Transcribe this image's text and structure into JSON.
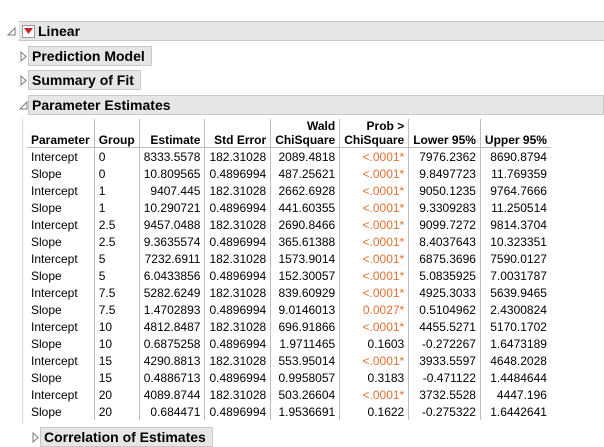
{
  "report": {
    "title": "Linear",
    "sections": [
      {
        "label": "Prediction Model",
        "expanded": false
      },
      {
        "label": "Summary of Fit",
        "expanded": false
      },
      {
        "label": "Parameter Estimates",
        "expanded": true
      },
      {
        "label": "Correlation of Estimates",
        "expanded": false
      }
    ]
  },
  "table": {
    "headers": {
      "parameter": "Parameter",
      "group": "Group",
      "estimate": "Estimate",
      "std_error": "Std Error",
      "wald_line1": "Wald",
      "wald_line2": "ChiSquare",
      "prob_line1": "Prob >",
      "prob_line2": "ChiSquare",
      "lower95": "Lower 95%",
      "upper95": "Upper 95%"
    },
    "rows": [
      {
        "parameter": "Intercept",
        "group": "0",
        "estimate": "8333.5578",
        "std_error": "182.31028",
        "wald": "2089.4818",
        "prob": "<.0001*",
        "sig": true,
        "lower": "7976.2362",
        "upper": "8690.8794"
      },
      {
        "parameter": "Slope",
        "group": "0",
        "estimate": "10.809565",
        "std_error": "0.4896994",
        "wald": "487.25621",
        "prob": "<.0001*",
        "sig": true,
        "lower": "9.8497723",
        "upper": "11.769359"
      },
      {
        "parameter": "Intercept",
        "group": "1",
        "estimate": "9407.445",
        "std_error": "182.31028",
        "wald": "2662.6928",
        "prob": "<.0001*",
        "sig": true,
        "lower": "9050.1235",
        "upper": "9764.7666"
      },
      {
        "parameter": "Slope",
        "group": "1",
        "estimate": "10.290721",
        "std_error": "0.4896994",
        "wald": "441.60355",
        "prob": "<.0001*",
        "sig": true,
        "lower": "9.3309283",
        "upper": "11.250514"
      },
      {
        "parameter": "Intercept",
        "group": "2.5",
        "estimate": "9457.0488",
        "std_error": "182.31028",
        "wald": "2690.8466",
        "prob": "<.0001*",
        "sig": true,
        "lower": "9099.7272",
        "upper": "9814.3704"
      },
      {
        "parameter": "Slope",
        "group": "2.5",
        "estimate": "9.3635574",
        "std_error": "0.4896994",
        "wald": "365.61388",
        "prob": "<.0001*",
        "sig": true,
        "lower": "8.4037643",
        "upper": "10.323351"
      },
      {
        "parameter": "Intercept",
        "group": "5",
        "estimate": "7232.6911",
        "std_error": "182.31028",
        "wald": "1573.9014",
        "prob": "<.0001*",
        "sig": true,
        "lower": "6875.3696",
        "upper": "7590.0127"
      },
      {
        "parameter": "Slope",
        "group": "5",
        "estimate": "6.0433856",
        "std_error": "0.4896994",
        "wald": "152.30057",
        "prob": "<.0001*",
        "sig": true,
        "lower": "5.0835925",
        "upper": "7.0031787"
      },
      {
        "parameter": "Intercept",
        "group": "7.5",
        "estimate": "5282.6249",
        "std_error": "182.31028",
        "wald": "839.60929",
        "prob": "<.0001*",
        "sig": true,
        "lower": "4925.3033",
        "upper": "5639.9465"
      },
      {
        "parameter": "Slope",
        "group": "7.5",
        "estimate": "1.4702893",
        "std_error": "0.4896994",
        "wald": "9.0146013",
        "prob": "0.0027*",
        "sig": true,
        "lower": "0.5104962",
        "upper": "2.4300824"
      },
      {
        "parameter": "Intercept",
        "group": "10",
        "estimate": "4812.8487",
        "std_error": "182.31028",
        "wald": "696.91866",
        "prob": "<.0001*",
        "sig": true,
        "lower": "4455.5271",
        "upper": "5170.1702"
      },
      {
        "parameter": "Slope",
        "group": "10",
        "estimate": "0.6875258",
        "std_error": "0.4896994",
        "wald": "1.9711465",
        "prob": "0.1603",
        "sig": false,
        "lower": "-0.272267",
        "upper": "1.6473189"
      },
      {
        "parameter": "Intercept",
        "group": "15",
        "estimate": "4290.8813",
        "std_error": "182.31028",
        "wald": "553.95014",
        "prob": "<.0001*",
        "sig": true,
        "lower": "3933.5597",
        "upper": "4648.2028"
      },
      {
        "parameter": "Slope",
        "group": "15",
        "estimate": "0.4886713",
        "std_error": "0.4896994",
        "wald": "0.9958057",
        "prob": "0.3183",
        "sig": false,
        "lower": "-0.471122",
        "upper": "1.4484644"
      },
      {
        "parameter": "Intercept",
        "group": "20",
        "estimate": "4089.8744",
        "std_error": "182.31028",
        "wald": "503.26604",
        "prob": "<.0001*",
        "sig": true,
        "lower": "3732.5528",
        "upper": "4447.196"
      },
      {
        "parameter": "Slope",
        "group": "20",
        "estimate": "0.684471",
        "std_error": "0.4896994",
        "wald": "1.9536691",
        "prob": "0.1622",
        "sig": false,
        "lower": "-0.275322",
        "upper": "1.6442641"
      }
    ]
  },
  "colors": {
    "significant_pvalue": "#e07030",
    "header_bg": "#e6e6e6",
    "menu_arrow": "#d02020"
  }
}
